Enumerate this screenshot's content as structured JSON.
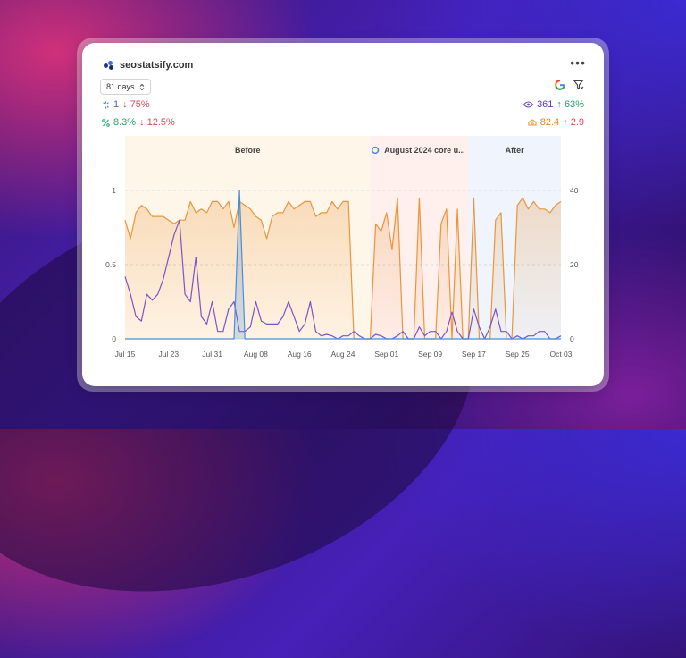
{
  "site": {
    "name": "seostatsify.com"
  },
  "controls": {
    "range_label": "81 days",
    "range_icon": "chevron-up-down-icon",
    "menu_icon": "more-dots-icon"
  },
  "stats": {
    "clicks": {
      "icon": "clicks-icon",
      "value": "1",
      "change": "↓ 75%"
    },
    "ctr": {
      "icon": "percent-icon",
      "value": "8.3%",
      "change": "↓ 12.5%"
    },
    "impressions": {
      "icon": "eye-icon",
      "value": "361",
      "change": "↑ 63%"
    },
    "position": {
      "icon": "position-icon",
      "value": "82.4",
      "change": "↑ 2.9"
    }
  },
  "colors": {
    "impressions": "#e8963c",
    "clicks": "#7a55c8",
    "ctr": "#4a8ed6",
    "before_bg": "#fff6ea",
    "update_bg": "#fff0ee",
    "after_bg": "#eff4fd",
    "red": "#e0485a",
    "green": "#22a36a"
  },
  "chart_data": {
    "type": "line",
    "x": [
      "Jul 15",
      "Jul 16",
      "Jul 17",
      "Jul 18",
      "Jul 19",
      "Jul 20",
      "Jul 21",
      "Jul 22",
      "Jul 23",
      "Jul 24",
      "Jul 25",
      "Jul 26",
      "Jul 27",
      "Jul 28",
      "Jul 29",
      "Jul 30",
      "Jul 31",
      "Aug 01",
      "Aug 02",
      "Aug 03",
      "Aug 04",
      "Aug 05",
      "Aug 06",
      "Aug 07",
      "Aug 08",
      "Aug 09",
      "Aug 10",
      "Aug 11",
      "Aug 12",
      "Aug 13",
      "Aug 14",
      "Aug 15",
      "Aug 16",
      "Aug 17",
      "Aug 18",
      "Aug 19",
      "Aug 20",
      "Aug 21",
      "Aug 22",
      "Aug 23",
      "Aug 24",
      "Aug 25",
      "Aug 26",
      "Aug 27",
      "Aug 28",
      "Aug 29",
      "Aug 30",
      "Aug 31",
      "Sep 01",
      "Sep 02",
      "Sep 03",
      "Sep 04",
      "Sep 05",
      "Sep 06",
      "Sep 07",
      "Sep 08",
      "Sep 09",
      "Sep 10",
      "Sep 11",
      "Sep 12",
      "Sep 13",
      "Sep 14",
      "Sep 15",
      "Sep 16",
      "Sep 17",
      "Sep 18",
      "Sep 19",
      "Sep 20",
      "Sep 21",
      "Sep 22",
      "Sep 23",
      "Sep 24",
      "Sep 25",
      "Sep 26",
      "Sep 27",
      "Sep 28",
      "Sep 29",
      "Sep 30",
      "Oct 01",
      "Oct 02",
      "Oct 03"
    ],
    "x_ticks": [
      "Jul 15",
      "Jul 23",
      "Jul 31",
      "Aug 08",
      "Aug 16",
      "Aug 24",
      "Sep 01",
      "Sep 09",
      "Sep 17",
      "Sep 25",
      "Oct 03"
    ],
    "y_left": {
      "ticks": [
        "0",
        "0.5",
        "1"
      ],
      "range": [
        0,
        1
      ]
    },
    "y_right": {
      "ticks": [
        "0",
        "20",
        "40"
      ],
      "range": [
        0,
        40
      ]
    },
    "regions": [
      {
        "label": "Before",
        "start": "Jul 15",
        "end": "Aug 29"
      },
      {
        "label": "August 2024 core u...",
        "start": "Aug 29",
        "end": "Sep 16",
        "icon": "google-icon"
      },
      {
        "label": "After",
        "start": "Sep 16",
        "end": "Oct 03"
      }
    ],
    "series": [
      {
        "axis": "right",
        "style": "area",
        "values": [
          32,
          27,
          34,
          36,
          35,
          33,
          33,
          33,
          32,
          31,
          32,
          32,
          37,
          34,
          35,
          34,
          37,
          37,
          35,
          37,
          30,
          37,
          36,
          35,
          33,
          32,
          27,
          33,
          34,
          34,
          37,
          35,
          36,
          37,
          37,
          33,
          34,
          34,
          37,
          35,
          37,
          37,
          0,
          0,
          0,
          0,
          31,
          29,
          34,
          24,
          38,
          0,
          0,
          0,
          38,
          0,
          0,
          0,
          31,
          35,
          0,
          35,
          0,
          0,
          38,
          0,
          0,
          0,
          32,
          34,
          0,
          0,
          36,
          38,
          35,
          37,
          35,
          35,
          34,
          36,
          37
        ]
      },
      {
        "axis": "left",
        "style": "line",
        "values": [
          0.42,
          0.3,
          0.15,
          0.12,
          0.3,
          0.26,
          0.3,
          0.4,
          0.55,
          0.7,
          0.8,
          0.3,
          0.25,
          0.55,
          0.15,
          0.1,
          0.25,
          0.05,
          0.05,
          0.2,
          0.25,
          0.05,
          0.05,
          0.08,
          0.25,
          0.12,
          0.1,
          0.1,
          0.1,
          0.15,
          0.25,
          0.15,
          0.05,
          0.1,
          0.25,
          0.05,
          0.02,
          0.03,
          0.02,
          0.0,
          0.02,
          0.02,
          0.05,
          0.02,
          0.0,
          0.0,
          0.03,
          0.02,
          0.0,
          0.0,
          0.02,
          0.05,
          0.0,
          0.0,
          0.08,
          0.02,
          0.05,
          0.05,
          0.0,
          0.05,
          0.18,
          0.05,
          0.0,
          0.0,
          0.2,
          0.08,
          0.0,
          0.08,
          0.2,
          0.05,
          0.05,
          0.0,
          0.02,
          0.0,
          0.02,
          0.02,
          0.05,
          0.05,
          0.0,
          0.0,
          0.02
        ]
      },
      {
        "axis": "left",
        "style": "line",
        "values": [
          0,
          0,
          0,
          0,
          0,
          0,
          0,
          0,
          0,
          0,
          0,
          0,
          0,
          0,
          0,
          0,
          0,
          0,
          0,
          0,
          0,
          1,
          0,
          0,
          0,
          0,
          0,
          0,
          0,
          0,
          0,
          0,
          0,
          0,
          0,
          0,
          0,
          0,
          0,
          0,
          0,
          0,
          0,
          0,
          0,
          0,
          0,
          0,
          0,
          0,
          0,
          0,
          0,
          0,
          0,
          0,
          0,
          0,
          0,
          0,
          0,
          0,
          0,
          0,
          0,
          0,
          0,
          0,
          0,
          0,
          0,
          0,
          0,
          0,
          0,
          0,
          0,
          0,
          0,
          0,
          0
        ]
      }
    ]
  }
}
